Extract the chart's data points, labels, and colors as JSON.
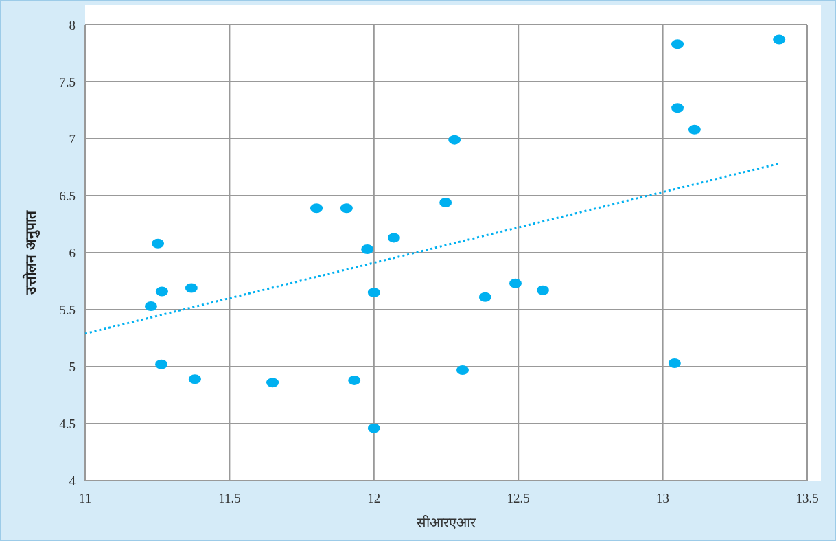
{
  "chart_data": {
    "type": "scatter",
    "xlabel": "सीआरएआर",
    "ylabel": "उत्तोलन अनुपात",
    "xlim": [
      11,
      13.5
    ],
    "ylim": [
      4,
      8
    ],
    "xticks": [
      11,
      11.5,
      12,
      12.5,
      13,
      13.5
    ],
    "yticks": [
      4,
      4.5,
      5,
      5.5,
      6,
      6.5,
      7,
      7.5,
      8
    ],
    "grid": true,
    "series": [
      {
        "type": "scatter",
        "marker": "circle",
        "color": "#00b0f0",
        "x": [
          11.252,
          11.228,
          11.266,
          11.264,
          11.368,
          11.38,
          11.649,
          11.801,
          11.905,
          11.932,
          11.977,
          12.0,
          12.0,
          12.069,
          12.248,
          12.279,
          12.307,
          12.385,
          12.49,
          12.585,
          13.041,
          13.051,
          13.051,
          13.11,
          13.403
        ],
        "values": [
          6.08,
          5.53,
          5.66,
          5.02,
          5.69,
          4.89,
          4.86,
          6.39,
          6.39,
          4.88,
          6.03,
          5.65,
          4.46,
          6.13,
          6.44,
          6.99,
          4.97,
          5.61,
          5.73,
          5.67,
          5.03,
          7.83,
          7.27,
          7.08,
          7.87
        ]
      },
      {
        "type": "line",
        "color": "#00b0f0",
        "line_style": "dotted",
        "x": [
          11,
          13.4
        ],
        "values": [
          5.29,
          6.78
        ]
      }
    ]
  }
}
